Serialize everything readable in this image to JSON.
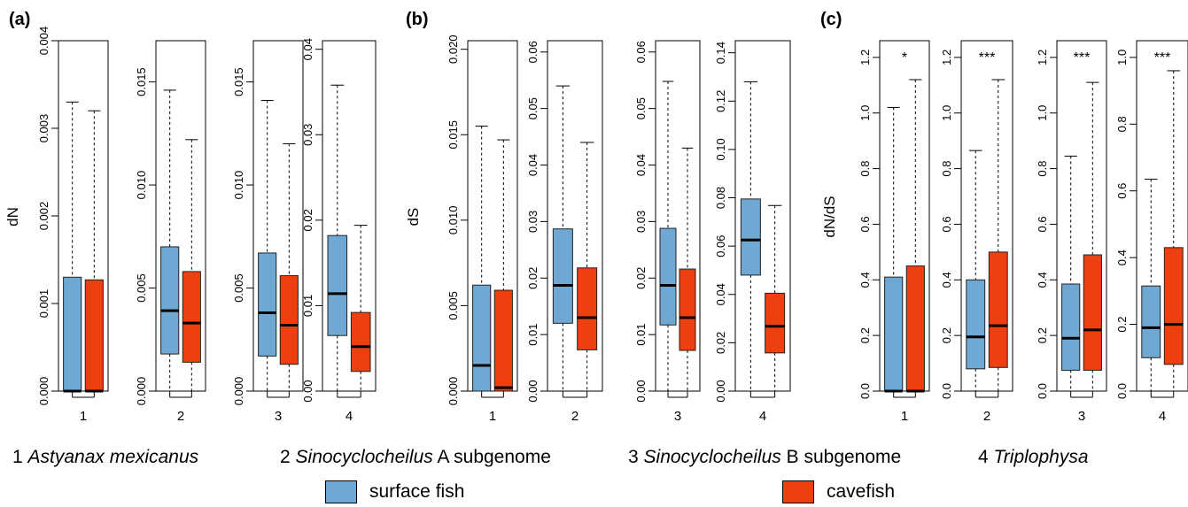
{
  "colors": {
    "surface": "#6fa8d2",
    "cave": "#ee3f0e",
    "box_edge": "#222222"
  },
  "captions": [
    {
      "num": "1",
      "species": "Astyanax mexicanus",
      "suffix": ""
    },
    {
      "num": "2",
      "species": "Sinocyclocheilus",
      "suffix": " A subgenome"
    },
    {
      "num": "3",
      "species": "Sinocyclocheilus",
      "suffix": " B subgenome"
    },
    {
      "num": "4",
      "species": "Triplophysa",
      "suffix": ""
    }
  ],
  "legend": {
    "surface": "surface fish",
    "cave": "cavefish"
  },
  "chart_data": [
    {
      "type": "boxplot",
      "panel_label": "(a)",
      "ylabel": "dN",
      "series_names": [
        "surface fish",
        "cavefish"
      ],
      "subplots": [
        {
          "category": "1",
          "ylim": [
            0,
            0.004
          ],
          "ticks": [
            "0.000",
            "0.001",
            "0.002",
            "0.003",
            "0.004"
          ],
          "tickvals": [
            0,
            0.001,
            0.002,
            0.003,
            0.004
          ],
          "boxes": [
            {
              "series": "surface fish",
              "min": 0,
              "q1": 0,
              "median": 0,
              "q3": 0.0013,
              "max": 0.0033
            },
            {
              "series": "cavefish",
              "min": 0,
              "q1": 0,
              "median": 0,
              "q3": 0.00127,
              "max": 0.0032
            }
          ]
        },
        {
          "category": "2",
          "ylim": [
            0,
            0.017
          ],
          "ticks": [
            "0.000",
            "0.005",
            "0.010",
            "0.015"
          ],
          "tickvals": [
            0,
            0.005,
            0.01,
            0.015
          ],
          "boxes": [
            {
              "series": "surface fish",
              "min": 0,
              "q1": 0.0018,
              "median": 0.0039,
              "q3": 0.007,
              "max": 0.0146
            },
            {
              "series": "cavefish",
              "min": 0,
              "q1": 0.0014,
              "median": 0.0033,
              "q3": 0.0058,
              "max": 0.0122
            }
          ]
        },
        {
          "category": "3",
          "ylim": [
            0,
            0.017
          ],
          "ticks": [
            "0.000",
            "0.005",
            "0.010",
            "0.015"
          ],
          "tickvals": [
            0,
            0.005,
            0.01,
            0.015
          ],
          "boxes": [
            {
              "series": "surface fish",
              "min": 0,
              "q1": 0.0017,
              "median": 0.0038,
              "q3": 0.0067,
              "max": 0.0141
            },
            {
              "series": "cavefish",
              "min": 0,
              "q1": 0.0013,
              "median": 0.0032,
              "q3": 0.0056,
              "max": 0.012
            }
          ]
        },
        {
          "category": "4",
          "ylim": [
            0,
            0.041
          ],
          "ticks": [
            "0.00",
            "0.01",
            "0.02",
            "0.03",
            "0.04"
          ],
          "tickvals": [
            0,
            0.01,
            0.02,
            0.03,
            0.04
          ],
          "boxes": [
            {
              "series": "surface fish",
              "min": 0,
              "q1": 0.0065,
              "median": 0.0114,
              "q3": 0.0182,
              "max": 0.0358
            },
            {
              "series": "cavefish",
              "min": 0,
              "q1": 0.0023,
              "median": 0.0052,
              "q3": 0.0092,
              "max": 0.0194
            }
          ]
        }
      ]
    },
    {
      "type": "boxplot",
      "panel_label": "(b)",
      "ylabel": "dS",
      "series_names": [
        "surface fish",
        "cavefish"
      ],
      "subplots": [
        {
          "category": "1",
          "ylim": [
            0,
            0.0205
          ],
          "ticks": [
            "0.000",
            "0.005",
            "0.010",
            "0.015",
            "0.020"
          ],
          "tickvals": [
            0,
            0.005,
            0.01,
            0.015,
            0.02
          ],
          "boxes": [
            {
              "series": "surface fish",
              "min": 0,
              "q1": 0,
              "median": 0.0015,
              "q3": 0.0062,
              "max": 0.0155
            },
            {
              "series": "cavefish",
              "min": 0,
              "q1": 0,
              "median": 0.0002,
              "q3": 0.0059,
              "max": 0.0147
            }
          ]
        },
        {
          "category": "2",
          "ylim": [
            0,
            0.062
          ],
          "ticks": [
            "0.00",
            "0.01",
            "0.02",
            "0.03",
            "0.04",
            "0.05",
            "0.06"
          ],
          "tickvals": [
            0,
            0.01,
            0.02,
            0.03,
            0.04,
            0.05,
            0.06
          ],
          "boxes": [
            {
              "series": "surface fish",
              "min": 0,
              "q1": 0.012,
              "median": 0.0187,
              "q3": 0.0287,
              "max": 0.054
            },
            {
              "series": "cavefish",
              "min": 0,
              "q1": 0.0073,
              "median": 0.013,
              "q3": 0.0218,
              "max": 0.044
            }
          ]
        },
        {
          "category": "3",
          "ylim": [
            0,
            0.062
          ],
          "ticks": [
            "0.00",
            "0.01",
            "0.02",
            "0.03",
            "0.04",
            "0.05",
            "0.06"
          ],
          "tickvals": [
            0,
            0.01,
            0.02,
            0.03,
            0.04,
            0.05,
            0.06
          ],
          "boxes": [
            {
              "series": "surface fish",
              "min": 0,
              "q1": 0.0117,
              "median": 0.0187,
              "q3": 0.0288,
              "max": 0.0548
            },
            {
              "series": "cavefish",
              "min": 0,
              "q1": 0.0072,
              "median": 0.013,
              "q3": 0.0216,
              "max": 0.043
            }
          ]
        },
        {
          "category": "4",
          "ylim": [
            0,
            0.145
          ],
          "ticks": [
            "0.00",
            "0.02",
            "0.04",
            "0.06",
            "0.08",
            "0.10",
            "0.12",
            "0.14"
          ],
          "tickvals": [
            0,
            0.02,
            0.04,
            0.06,
            0.08,
            0.1,
            0.12,
            0.14
          ],
          "boxes": [
            {
              "series": "surface fish",
              "min": 0,
              "q1": 0.048,
              "median": 0.0625,
              "q3": 0.0795,
              "max": 0.128
            },
            {
              "series": "cavefish",
              "min": 0,
              "q1": 0.0158,
              "median": 0.0268,
              "q3": 0.0405,
              "max": 0.0768
            }
          ]
        }
      ]
    },
    {
      "type": "boxplot",
      "panel_label": "(c)",
      "ylabel": "dN/dS",
      "series_names": [
        "surface fish",
        "cavefish"
      ],
      "subplots": [
        {
          "category": "1",
          "ylim": [
            0,
            1.26
          ],
          "ticks": [
            "0.0",
            "0.2",
            "0.4",
            "0.6",
            "0.8",
            "1.0",
            "1.2"
          ],
          "tickvals": [
            0,
            0.2,
            0.4,
            0.6,
            0.8,
            1.0,
            1.2
          ],
          "significance": "*",
          "boxes": [
            {
              "series": "surface fish",
              "min": 0,
              "q1": 0,
              "median": 0,
              "q3": 0.41,
              "max": 1.02
            },
            {
              "series": "cavefish",
              "min": 0,
              "q1": 0,
              "median": 0,
              "q3": 0.45,
              "max": 1.12
            }
          ]
        },
        {
          "category": "2",
          "ylim": [
            0,
            1.26
          ],
          "ticks": [
            "0.0",
            "0.2",
            "0.4",
            "0.6",
            "0.8",
            "1.0",
            "1.2"
          ],
          "tickvals": [
            0,
            0.2,
            0.4,
            0.6,
            0.8,
            1.0,
            1.2
          ],
          "significance": "***",
          "boxes": [
            {
              "series": "surface fish",
              "min": 0,
              "q1": 0.08,
              "median": 0.195,
              "q3": 0.4,
              "max": 0.865
            },
            {
              "series": "cavefish",
              "min": 0,
              "q1": 0.085,
              "median": 0.235,
              "q3": 0.5,
              "max": 1.12
            }
          ]
        },
        {
          "category": "3",
          "ylim": [
            0,
            1.26
          ],
          "ticks": [
            "0.0",
            "0.2",
            "0.4",
            "0.6",
            "0.8",
            "1.0",
            "1.2"
          ],
          "tickvals": [
            0,
            0.2,
            0.4,
            0.6,
            0.8,
            1.0,
            1.2
          ],
          "significance": "***",
          "boxes": [
            {
              "series": "surface fish",
              "min": 0,
              "q1": 0.075,
              "median": 0.19,
              "q3": 0.385,
              "max": 0.845
            },
            {
              "series": "cavefish",
              "min": 0,
              "q1": 0.075,
              "median": 0.22,
              "q3": 0.49,
              "max": 1.11
            }
          ]
        },
        {
          "category": "4",
          "ylim": [
            0,
            1.05
          ],
          "ticks": [
            "0.0",
            "0.2",
            "0.4",
            "0.6",
            "0.8",
            "1.0"
          ],
          "tickvals": [
            0,
            0.2,
            0.4,
            0.6,
            0.8,
            1.0
          ],
          "significance": "***",
          "boxes": [
            {
              "series": "surface fish",
              "min": 0,
              "q1": 0.1,
              "median": 0.19,
              "q3": 0.315,
              "max": 0.635
            },
            {
              "series": "cavefish",
              "min": 0,
              "q1": 0.08,
              "median": 0.2,
              "q3": 0.43,
              "max": 0.96
            }
          ]
        }
      ]
    }
  ]
}
